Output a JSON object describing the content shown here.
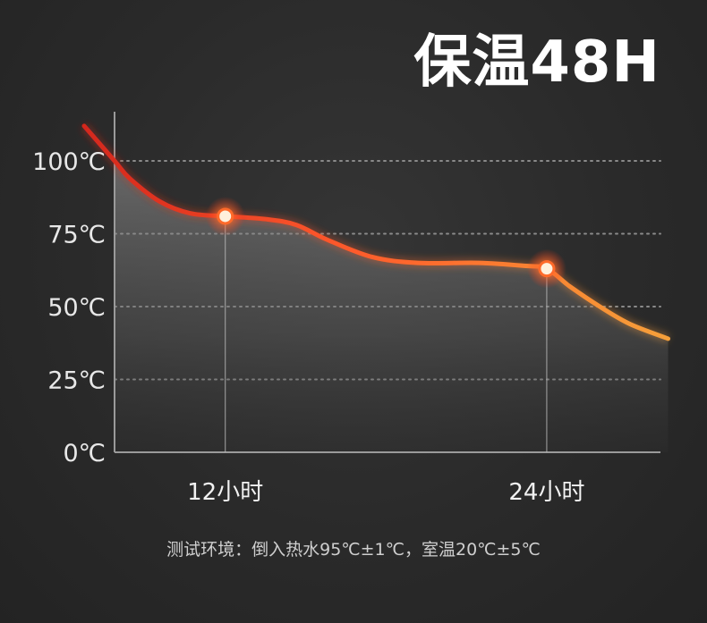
{
  "title": "保温48H",
  "footnote": "测试环境：倒入热水95℃±1℃，室温20℃±5℃",
  "colors": {
    "background": "#2b2b2b",
    "curve_start": "#d4261c",
    "curve_mid": "#ff5a2a",
    "curve_end": "#f5a03a",
    "marker": "#ff6a2a",
    "grid": "#8a8a8a",
    "axis": "#9a9a9a",
    "text": "#e8e8e8"
  },
  "chart_data": {
    "type": "line",
    "title": "保温48H",
    "xlabel": "",
    "ylabel": "",
    "ylim": [
      0,
      100
    ],
    "xlim": [
      0,
      36
    ],
    "y_ticks": [
      {
        "value": 100,
        "label": "100℃"
      },
      {
        "value": 75,
        "label": "75℃"
      },
      {
        "value": 50,
        "label": "50℃"
      },
      {
        "value": 25,
        "label": "25℃"
      },
      {
        "value": 0,
        "label": "0℃"
      }
    ],
    "x_ticks": [
      {
        "value": 7.3,
        "label": "12小时"
      },
      {
        "value": 28.5,
        "label": "24小时"
      }
    ],
    "grid": true,
    "series": [
      {
        "x": [
          0,
          1,
          3,
          5,
          7.3,
          10,
          12,
          14,
          17,
          20,
          24,
          27,
          28.5,
          30,
          32,
          34,
          36.5
        ],
        "values": [
          100,
          94,
          86,
          82,
          81,
          80,
          78,
          73,
          67,
          65,
          65,
          64,
          63,
          57,
          50,
          44,
          39
        ]
      }
    ],
    "markers": [
      {
        "x": 7.3,
        "y": 81
      },
      {
        "x": 28.5,
        "y": 63
      }
    ]
  }
}
